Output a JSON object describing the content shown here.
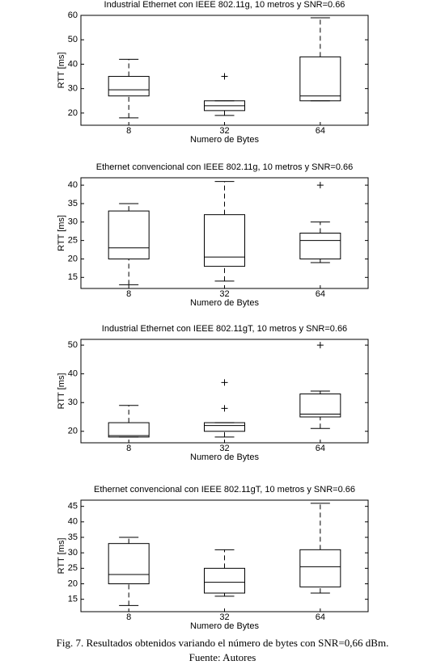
{
  "chart_data": [
    {
      "type": "box",
      "title": "Industrial Ethernet con IEEE 802.11g, 10 metros y SNR=0.66",
      "x_label": "Numero de Bytes",
      "y_label": "RTT [ms]",
      "categories": [
        "8",
        "32",
        "64"
      ],
      "boxes": [
        {
          "whislo": 18,
          "q1": 27,
          "med": 29.5,
          "q3": 35,
          "whishi": 42
        },
        {
          "whislo": 19,
          "q1": 21,
          "med": 23,
          "q3": 25,
          "whishi": 25,
          "fliers": [
            35
          ]
        },
        {
          "whislo": 25,
          "q1": 25,
          "med": 27,
          "q3": 43,
          "whishi": 59
        }
      ],
      "ylim": [
        15,
        60
      ],
      "yticks": [
        20,
        30,
        40,
        50,
        60
      ],
      "color": "#000000"
    },
    {
      "type": "box",
      "title": "Ethernet convencional con IEEE 802.11g, 10 metros y SNR=0.66",
      "x_label": "Numero de Bytes",
      "y_label": "RTT [ms]",
      "categories": [
        "8",
        "32",
        "64"
      ],
      "boxes": [
        {
          "whislo": 13,
          "q1": 20,
          "med": 23,
          "q3": 33,
          "whishi": 35
        },
        {
          "whislo": 14,
          "q1": 18,
          "med": 20.5,
          "q3": 32,
          "whishi": 41
        },
        {
          "whislo": 19,
          "q1": 20,
          "med": 25,
          "q3": 27,
          "whishi": 30,
          "fliers": [
            40
          ]
        }
      ],
      "ylim": [
        12,
        42
      ],
      "yticks": [
        15,
        20,
        25,
        30,
        35,
        40
      ],
      "color": "#000000"
    },
    {
      "type": "box",
      "title": "Industrial Ethernet con IEEE 802.11gT, 10 metros y SNR=0.66",
      "x_label": "Numero de Bytes",
      "y_label": "RTT [ms]",
      "categories": [
        "8",
        "32",
        "64"
      ],
      "boxes": [
        {
          "whislo": 18,
          "q1": 18,
          "med": 18.5,
          "q3": 23,
          "whishi": 29
        },
        {
          "whislo": 18,
          "q1": 20,
          "med": 22,
          "q3": 23,
          "whishi": 23,
          "fliers": [
            28,
            37
          ]
        },
        {
          "whislo": 21,
          "q1": 25,
          "med": 26,
          "q3": 33,
          "whishi": 34,
          "fliers": [
            50
          ]
        }
      ],
      "ylim": [
        16,
        52
      ],
      "yticks": [
        20,
        30,
        40,
        50
      ],
      "color": "#000000"
    },
    {
      "type": "box",
      "title": "Ethernet convencional con IEEE 802.11gT, 10 metros y SNR=0.66",
      "x_label": "Numero de Bytes",
      "y_label": "RTT [ms]",
      "categories": [
        "8",
        "32",
        "64"
      ],
      "boxes": [
        {
          "whislo": 13,
          "q1": 20,
          "med": 23,
          "q3": 33,
          "whishi": 35
        },
        {
          "whislo": 16,
          "q1": 17,
          "med": 20.5,
          "q3": 25,
          "whishi": 31
        },
        {
          "whislo": 17,
          "q1": 19,
          "med": 25.5,
          "q3": 31,
          "whishi": 46
        }
      ],
      "ylim": [
        11,
        47
      ],
      "yticks": [
        15,
        20,
        25,
        30,
        35,
        40,
        45
      ],
      "color": "#000000"
    }
  ],
  "caption": "Fig. 7. Resultados obtenidos variando el número de bytes con SNR=0,66 dBm.",
  "source": "Fuente: Autores"
}
